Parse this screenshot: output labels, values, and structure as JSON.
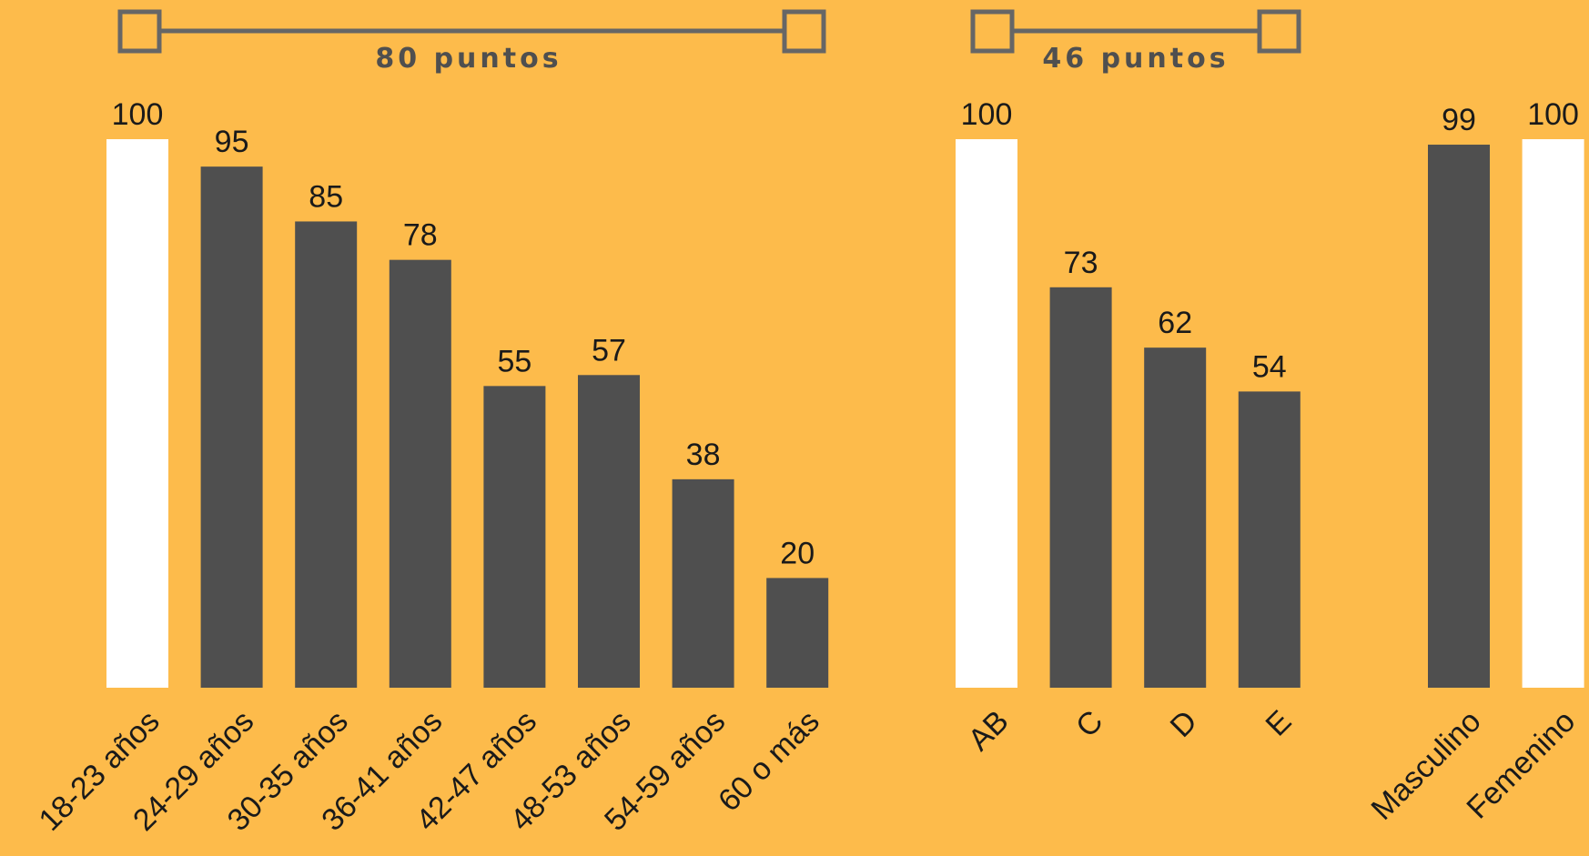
{
  "colors": {
    "background": "#FDBB4B",
    "bar_dark": "#4f4f4f",
    "bar_highlight": "#ffffff",
    "text": "#1a1a1a",
    "bracket": "#666666"
  },
  "annotations": {
    "age_gap": "80 puntos",
    "nse_gap": "46 puntos"
  },
  "chart_data": [
    {
      "type": "bar",
      "categories": [
        "18-23 años",
        "24-29 años",
        "30-35 años",
        "36-41 años",
        "42-47 años",
        "48-53 años",
        "54-59 años",
        "60 o más"
      ],
      "values": [
        100,
        95,
        85,
        78,
        55,
        57,
        38,
        20
      ],
      "highlight": [
        "18-23 años"
      ],
      "annotation": "80 puntos",
      "ylim": [
        0,
        100
      ]
    },
    {
      "type": "bar",
      "categories": [
        "AB",
        "C",
        "D",
        "E"
      ],
      "values": [
        100,
        73,
        62,
        54
      ],
      "highlight": [
        "AB"
      ],
      "annotation": "46 puntos",
      "ylim": [
        0,
        100
      ]
    },
    {
      "type": "bar",
      "categories": [
        "Masculino",
        "Femenino"
      ],
      "values": [
        99,
        100
      ],
      "highlight": [
        "Femenino"
      ],
      "ylim": [
        0,
        100
      ]
    }
  ]
}
